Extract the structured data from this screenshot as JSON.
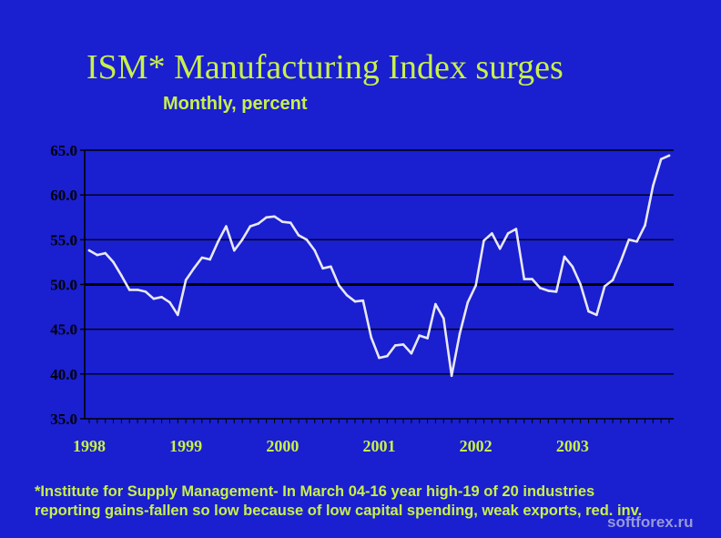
{
  "chart_data": {
    "type": "line",
    "title": "ISM* Manufacturing Index surges",
    "subtitle": "Monthly, percent",
    "xlabel": "",
    "ylabel": "",
    "ylim": [
      35,
      65
    ],
    "yticks": [
      "35.0",
      "40.0",
      "45.0",
      "50.0",
      "55.0",
      "60.0",
      "65.0"
    ],
    "xtick_labels": [
      "1998",
      "1999",
      "2000",
      "2001",
      "2002",
      "2003"
    ],
    "start": "1998-01",
    "reference_line": 50,
    "grid": true,
    "series": [
      {
        "name": "ISM Manufacturing Index",
        "values": [
          53.8,
          53.3,
          53.5,
          52.5,
          51.0,
          49.4,
          49.4,
          49.2,
          48.4,
          48.6,
          48.0,
          46.6,
          50.5,
          51.8,
          53.0,
          52.8,
          54.8,
          56.5,
          53.8,
          55.0,
          56.5,
          56.8,
          57.5,
          57.6,
          57.0,
          56.9,
          55.5,
          55.0,
          53.8,
          51.8,
          52.0,
          49.9,
          48.8,
          48.1,
          48.2,
          44.1,
          41.8,
          42.0,
          43.2,
          43.3,
          42.3,
          44.3,
          44.0,
          47.8,
          46.2,
          39.8,
          44.5,
          48.0,
          49.9,
          54.9,
          55.7,
          54.0,
          55.7,
          56.2,
          50.6,
          50.6,
          49.6,
          49.3,
          49.2,
          53.1,
          52.0,
          50.0,
          47.0,
          46.6,
          49.8,
          50.5,
          52.6,
          55.0,
          54.8,
          56.6,
          61.0,
          64.0,
          64.4
        ]
      }
    ]
  },
  "footnote": {
    "line1": "*Institute for Supply Management- In March 04-16 year high-19 of 20 industries",
    "line2": "reporting gains-fallen so low because of low capital spending, weak exports, red. inv."
  },
  "watermark": "softforex.ru",
  "colors": {
    "background": "#1a1fd0",
    "title": "#c8f04a",
    "line": "#e8e8f4",
    "axis": "#000000",
    "tick_label": "#000000",
    "year_label": "#c8f04a"
  }
}
